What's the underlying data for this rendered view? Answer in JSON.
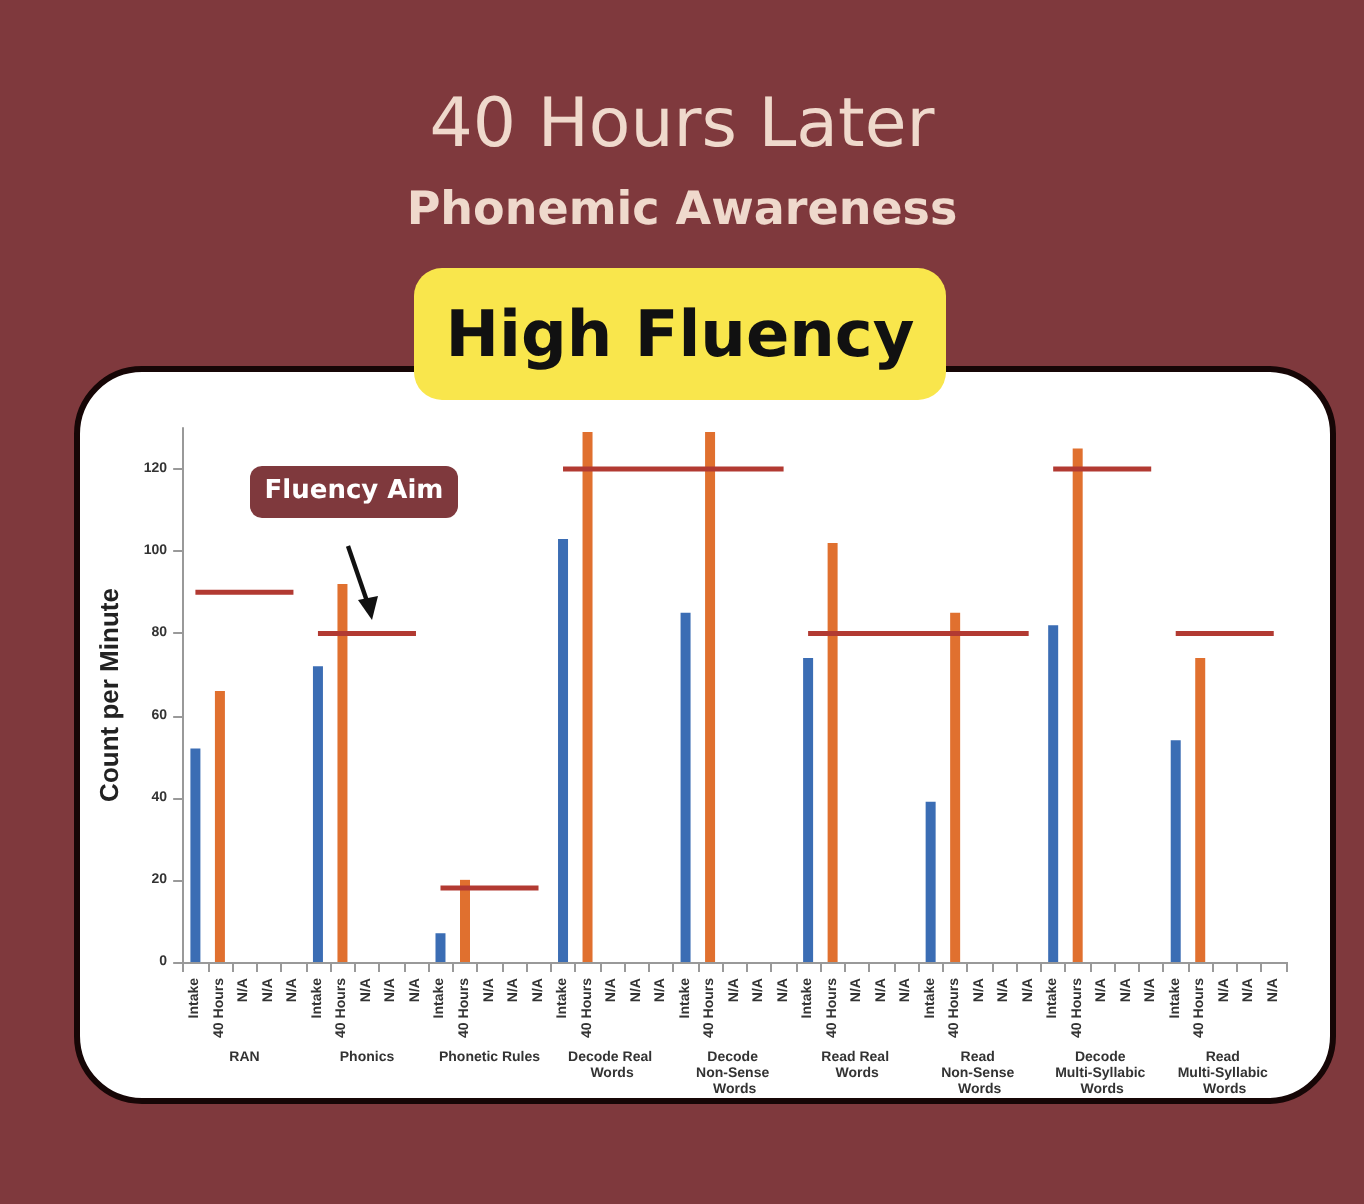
{
  "chart_data": {
    "type": "bar",
    "title": "40 Hours Later",
    "subtitle": "Phonemic Awareness",
    "ylabel": "Count per Minute",
    "annotations": [
      "High Fluency",
      "Fluency Aim",
      "RAN",
      "Phonics",
      "Phonetic Rules",
      "Decode Real Words",
      "Decode Non-Sense Words",
      "Read Real Words",
      "Read Non-Sense Words",
      "Decode Multi-Syllabic Words",
      "Read Multi-Syllabic Words"
    ],
    "categories": [
      "Intake",
      "40 Hours",
      "N/A",
      "N/A",
      "N/A",
      "Intake",
      "40 Hours",
      "N/A",
      "N/A",
      "N/A",
      "Intake",
      "40 Hours",
      "N/A",
      "N/A",
      "N/A",
      "Intake",
      "40 Hours",
      "N/A",
      "N/A",
      "N/A",
      "Intake",
      "40 Hours",
      "N/A",
      "N/A",
      "N/A",
      "Intake",
      "40 Hours",
      "N/A",
      "N/A",
      "N/A",
      "Intake",
      "40 Hours",
      "N/A",
      "N/A",
      "N/A",
      "Intake",
      "40 Hours",
      "N/A",
      "N/A",
      "N/A",
      "Intake",
      "40 Hours",
      "N/A",
      "N/A",
      "N/A"
    ],
    "series": [
      {
        "color": "#3b6db4",
        "values": [
          52,
          null,
          null,
          null,
          null,
          72,
          null,
          null,
          null,
          null,
          7,
          null,
          null,
          null,
          null,
          103,
          null,
          null,
          null,
          null,
          85,
          null,
          null,
          null,
          null,
          74,
          null,
          null,
          null,
          null,
          39,
          null,
          null,
          null,
          null,
          82,
          null,
          null,
          null,
          null,
          54,
          null,
          null,
          null,
          null
        ]
      },
      {
        "color": "#e0702f",
        "values": [
          null,
          66,
          null,
          null,
          null,
          null,
          92,
          null,
          null,
          null,
          null,
          20,
          null,
          null,
          null,
          null,
          129,
          null,
          null,
          null,
          null,
          129,
          null,
          null,
          null,
          null,
          102,
          null,
          null,
          null,
          null,
          85,
          null,
          null,
          null,
          null,
          125,
          null,
          null,
          null,
          null,
          74,
          null,
          null,
          null
        ]
      },
      {
        "type": "line",
        "color": "#b23a32",
        "values": [
          90,
          90,
          90,
          90,
          90,
          null,
          null,
          null,
          null,
          null,
          null,
          null,
          null,
          null,
          null,
          null,
          null,
          null,
          null,
          null,
          null,
          null,
          null,
          null,
          null,
          null,
          null,
          null,
          null,
          null,
          null,
          null,
          null,
          null,
          null,
          null,
          null,
          null,
          null,
          null,
          null,
          null,
          null,
          null,
          null
        ]
      },
      {
        "type": "line",
        "color": "#b23a32",
        "values": [
          null,
          null,
          null,
          null,
          null,
          80,
          80,
          80,
          80,
          80,
          null,
          null,
          null,
          null,
          null,
          null,
          null,
          null,
          null,
          null,
          null,
          null,
          null,
          null,
          null,
          null,
          null,
          null,
          null,
          null,
          null,
          null,
          null,
          null,
          null,
          null,
          null,
          null,
          null,
          null,
          null,
          null,
          null,
          null,
          null
        ]
      },
      {
        "type": "line",
        "color": "#b23a32",
        "values": [
          null,
          null,
          null,
          null,
          null,
          null,
          null,
          null,
          null,
          null,
          18,
          18,
          18,
          18,
          18,
          null,
          null,
          null,
          null,
          null,
          null,
          null,
          null,
          null,
          null,
          null,
          null,
          null,
          null,
          null,
          null,
          null,
          null,
          null,
          null,
          null,
          null,
          null,
          null,
          null,
          null,
          null,
          null,
          null,
          null
        ]
      },
      {
        "type": "line",
        "color": "#b23a32",
        "values": [
          null,
          null,
          null,
          null,
          null,
          null,
          null,
          null,
          null,
          null,
          null,
          null,
          null,
          null,
          null,
          120,
          120,
          120,
          120,
          120,
          120,
          120,
          120,
          120,
          120,
          null,
          null,
          null,
          null,
          null,
          null,
          null,
          null,
          null,
          null,
          null,
          null,
          null,
          null,
          null,
          null,
          null,
          null,
          null,
          null
        ]
      },
      {
        "type": "line",
        "color": "#b23a32",
        "values": [
          null,
          null,
          null,
          null,
          null,
          null,
          null,
          null,
          null,
          null,
          null,
          null,
          null,
          null,
          null,
          null,
          null,
          null,
          null,
          null,
          null,
          null,
          null,
          null,
          null,
          80,
          80,
          80,
          80,
          80,
          80,
          80,
          80,
          80,
          80,
          null,
          null,
          null,
          null,
          null,
          null,
          null,
          null,
          null,
          null
        ]
      },
      {
        "type": "line",
        "color": "#b23a32",
        "values": [
          null,
          null,
          null,
          null,
          null,
          null,
          null,
          null,
          null,
          null,
          null,
          null,
          null,
          null,
          null,
          null,
          null,
          null,
          null,
          null,
          null,
          null,
          null,
          null,
          null,
          null,
          null,
          null,
          null,
          null,
          null,
          null,
          null,
          null,
          null,
          120,
          120,
          120,
          120,
          120,
          null,
          null,
          null,
          null,
          null
        ]
      },
      {
        "type": "line",
        "color": "#b23a32",
        "values": [
          null,
          null,
          null,
          null,
          null,
          null,
          null,
          null,
          null,
          null,
          null,
          null,
          null,
          null,
          null,
          null,
          null,
          null,
          null,
          null,
          null,
          null,
          null,
          null,
          null,
          null,
          null,
          null,
          null,
          null,
          null,
          null,
          null,
          null,
          null,
          null,
          null,
          null,
          null,
          null,
          80,
          80,
          80,
          80,
          80
        ]
      }
    ],
    "ylim": [
      0,
      130
    ],
    "yticks": [
      0,
      20,
      40,
      60,
      80,
      100,
      120
    ]
  }
}
